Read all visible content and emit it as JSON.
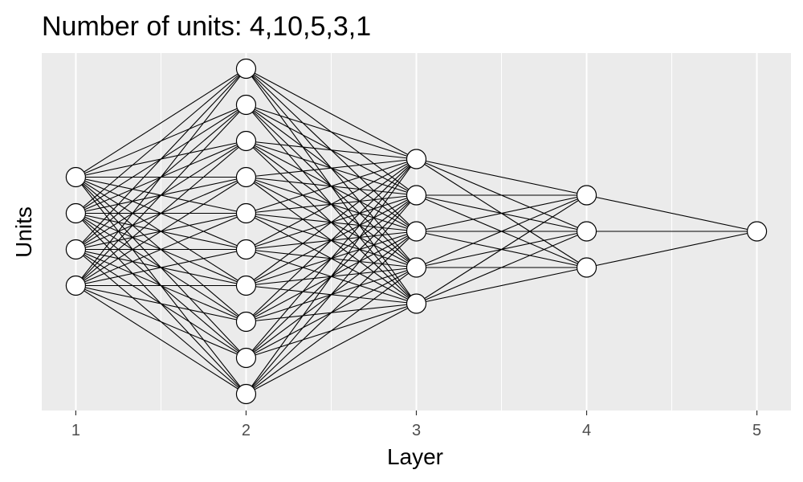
{
  "title": "Number of units: 4,10,5,3,1",
  "chart_data": {
    "type": "network-diagram",
    "title": "Number of units: 4,10,5,3,1",
    "xlabel": "Layer",
    "ylabel": "Units",
    "x_ticks": [
      "1",
      "2",
      "3",
      "4",
      "5"
    ],
    "xlim": [
      0.8,
      5.2
    ],
    "grid": true,
    "layers": [
      {
        "layer": 1,
        "units": 4
      },
      {
        "layer": 2,
        "units": 10
      },
      {
        "layer": 3,
        "units": 5
      },
      {
        "layer": 4,
        "units": 3
      },
      {
        "layer": 5,
        "units": 1
      }
    ],
    "connections": "fully-connected between adjacent layers",
    "colors": {
      "panel": "#ebebeb",
      "grid": "#ffffff",
      "edge": "#000000",
      "node_fill": "#ffffff",
      "node_stroke": "#000000"
    }
  }
}
